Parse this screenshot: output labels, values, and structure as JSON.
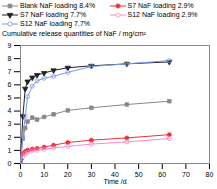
{
  "chart_data": {
    "type": "line",
    "xlabel": "Time /d",
    "ylabel": "Cumulative release quantities of NaF / mg/cm²",
    "x": [
      0,
      1,
      2,
      3,
      5,
      7,
      10,
      14,
      20,
      30,
      45,
      63
    ],
    "series": [
      {
        "name": "Blank NaF loading 8.4%",
        "color": "#888888",
        "marker": "square",
        "line_style": "solid",
        "values": [
          0.2,
          1.9,
          2.7,
          3.2,
          3.5,
          3.35,
          3.55,
          3.75,
          4.05,
          4.25,
          4.5,
          4.75
        ]
      },
      {
        "name": "S7 NaF loading 2.9%",
        "color": "#ee3333",
        "marker": "circle",
        "line_style": "solid",
        "values": [
          0.15,
          0.75,
          0.92,
          1.02,
          1.1,
          1.15,
          1.25,
          1.4,
          1.6,
          1.78,
          1.95,
          2.2
        ]
      },
      {
        "name": "S7 NaF loading 7.7%",
        "color": "#222222",
        "marker": "triangle-down",
        "line_style": "solid",
        "values": [
          0.2,
          3.6,
          5.7,
          6.25,
          6.55,
          6.75,
          6.9,
          7.1,
          7.3,
          7.45,
          7.6,
          7.75
        ]
      },
      {
        "name": "S12 NaF loading 2.9%",
        "color": "#ff88cc",
        "marker": "circle-open",
        "line_style": "solid",
        "values": [
          0.1,
          0.55,
          0.75,
          0.85,
          0.95,
          1.0,
          1.08,
          1.18,
          1.3,
          1.48,
          1.65,
          1.9
        ]
      },
      {
        "name": "S12 NaF loading 7.7%",
        "color": "#7799ee",
        "marker": "circle-open",
        "line_style": "solid",
        "values": [
          0.2,
          2.1,
          3.6,
          5.1,
          5.9,
          6.3,
          6.5,
          6.65,
          6.95,
          7.4,
          7.6,
          7.85
        ]
      }
    ],
    "xlim": [
      0,
      80
    ],
    "xticks": [
      0,
      10,
      20,
      30,
      40,
      50,
      60,
      70,
      80
    ],
    "ylim": [
      0,
      9
    ],
    "yticks": [
      0,
      1,
      2,
      3,
      4,
      5,
      6,
      7,
      8,
      9
    ],
    "grid": false,
    "legend": "top"
  }
}
